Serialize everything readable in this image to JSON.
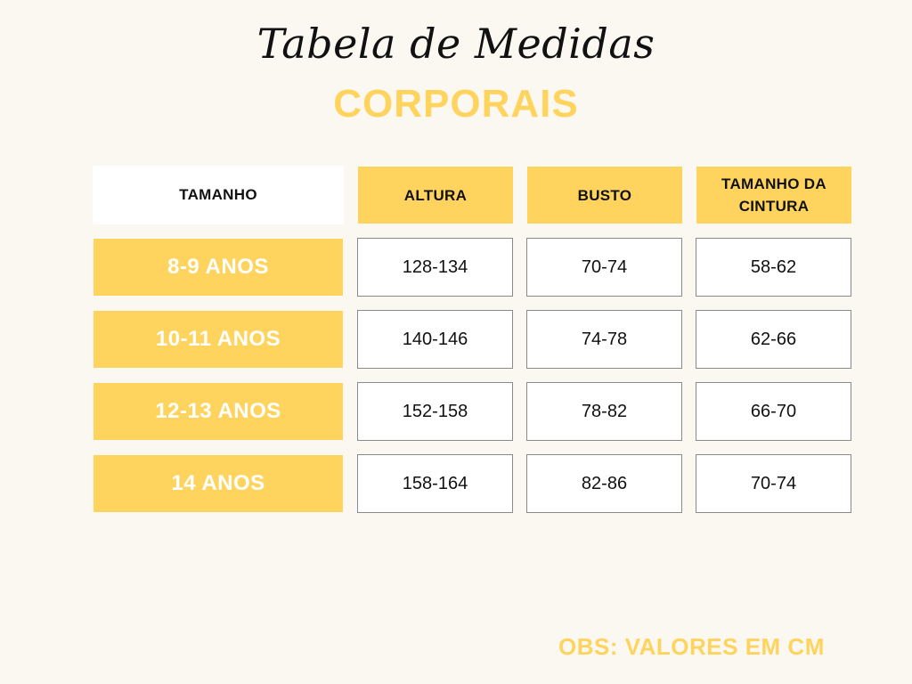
{
  "title": "Tabela de Medidas",
  "subtitle": "CORPORAIS",
  "table": {
    "headers": {
      "size": "TAMANHO",
      "height": "ALTURA",
      "bust": "BUSTO",
      "waist": "TAMANHO DA CINTURA"
    },
    "rows": [
      {
        "size": "8-9 ANOS",
        "height": "128-134",
        "bust": "70-74",
        "waist": "58-62"
      },
      {
        "size": "10-11 ANOS",
        "height": "140-146",
        "bust": "74-78",
        "waist": "62-66"
      },
      {
        "size": "12-13 ANOS",
        "height": "152-158",
        "bust": "78-82",
        "waist": "66-70"
      },
      {
        "size": "14 ANOS",
        "height": "158-164",
        "bust": "82-86",
        "waist": "70-74"
      }
    ]
  },
  "note": "OBS: VALORES EM CM",
  "colors": {
    "accent": "#ffd45e",
    "background": "#faf8f0",
    "text": "#111111"
  }
}
